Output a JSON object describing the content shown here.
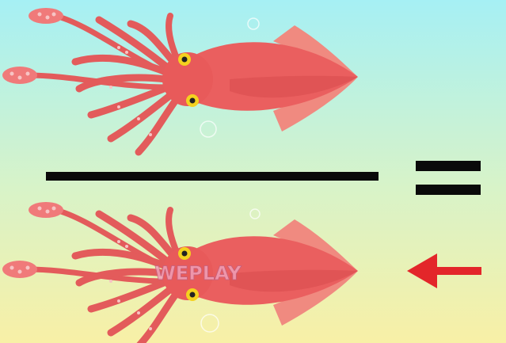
{
  "watermark": "WEPLAY"
}
